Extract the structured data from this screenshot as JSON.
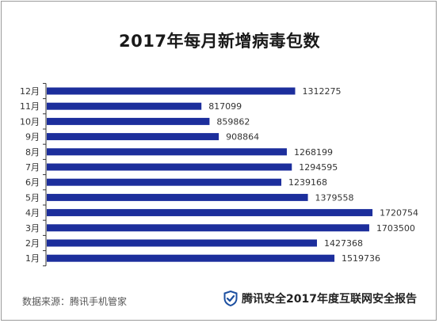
{
  "title": "2017年每月新增病毒包数",
  "footer": {
    "source": "数据来源：腾讯手机管家",
    "brand": "腾讯安全2017年度互联网安全报告",
    "brand_icon": "shield-check-icon"
  },
  "colors": {
    "bar": "#1c2e9c",
    "axis": "#333333",
    "text": "#333333",
    "shield": "#1c4fa0"
  },
  "chart_data": {
    "type": "bar",
    "orientation": "horizontal",
    "categories": [
      "12月",
      "11月",
      "10月",
      "9月",
      "8月",
      "7月",
      "6月",
      "5月",
      "4月",
      "3月",
      "2月",
      "1月"
    ],
    "values": [
      1312275,
      817099,
      859862,
      908864,
      1268199,
      1294595,
      1239168,
      1379558,
      1720754,
      1703500,
      1427368,
      1519736
    ],
    "title": "2017年每月新增病毒包数",
    "xlabel": "",
    "ylabel": "",
    "xlim": [
      0,
      1800000
    ],
    "grid": false,
    "legend": "none",
    "data_labels": true
  }
}
